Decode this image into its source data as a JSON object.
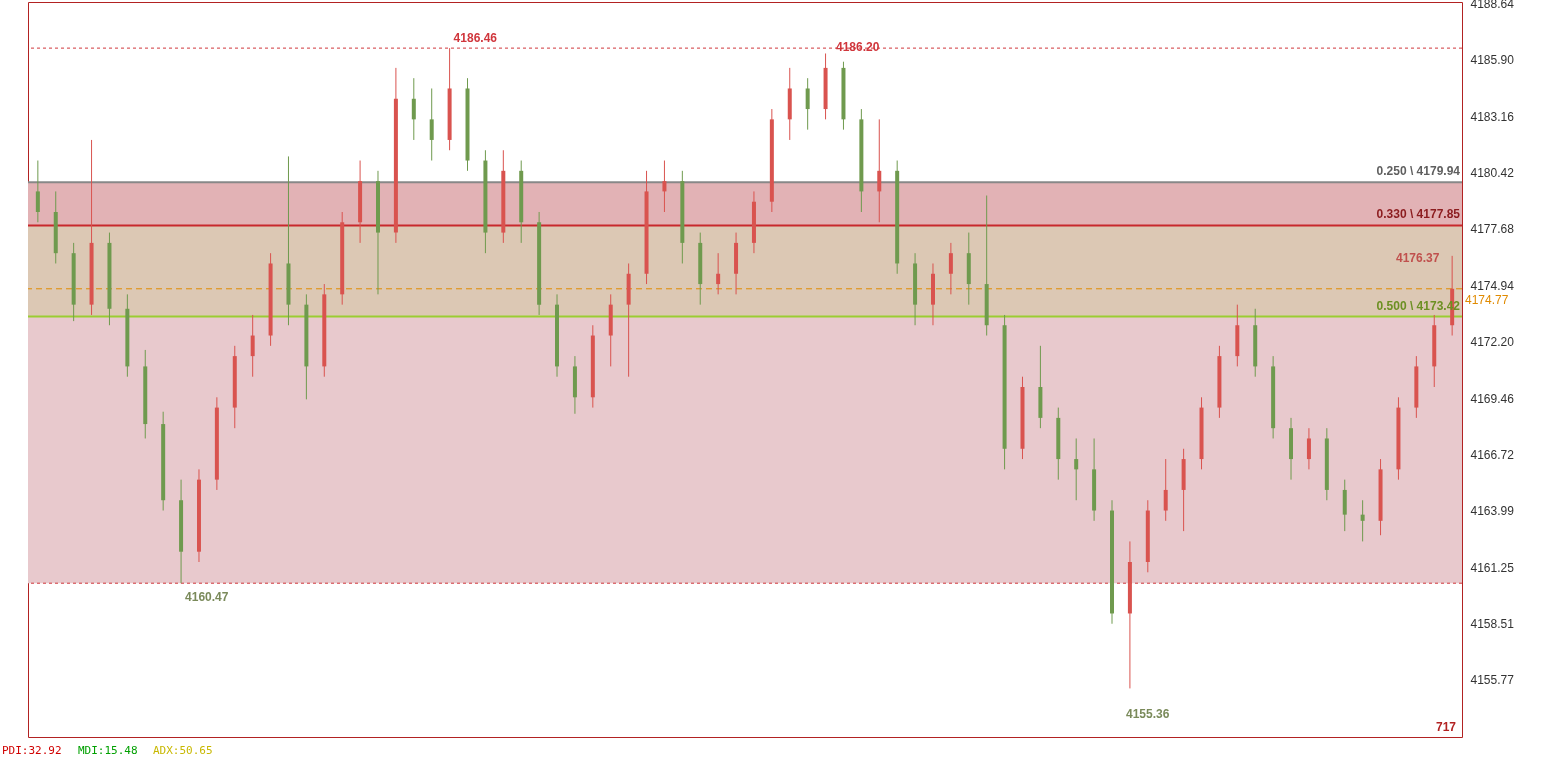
{
  "chart_data": {
    "type": "candlestick",
    "categories": [
      null,
      null,
      null,
      null,
      null,
      null,
      null,
      null,
      null,
      null,
      null,
      null,
      null,
      null,
      null,
      null,
      null,
      null,
      null,
      null,
      null,
      null,
      null,
      null,
      null,
      null,
      null,
      null,
      null,
      null,
      null,
      null,
      null,
      null,
      null,
      null,
      null,
      null,
      null,
      null,
      null,
      null,
      null,
      null,
      null,
      null,
      null,
      null,
      null,
      null,
      null,
      null,
      null,
      null,
      null,
      null,
      null,
      null,
      null,
      null,
      null,
      null,
      null,
      null,
      null,
      null,
      null,
      null,
      null,
      null,
      null,
      null,
      null,
      null,
      null,
      null,
      null,
      null,
      null,
      null
    ],
    "ohlc": [
      [
        4179.5,
        4181.0,
        4178.0,
        4178.5
      ],
      [
        4178.5,
        4179.5,
        4176.0,
        4176.5
      ],
      [
        4176.5,
        4177.0,
        4173.2,
        4174.0
      ],
      [
        4174.0,
        4182.0,
        4173.5,
        4177.0
      ],
      [
        4177.0,
        4177.5,
        4173.0,
        4173.8
      ],
      [
        4173.8,
        4174.5,
        4170.5,
        4171.0
      ],
      [
        4171.0,
        4171.8,
        4167.5,
        4168.2
      ],
      [
        4168.2,
        4168.8,
        4164.0,
        4164.5
      ],
      [
        4164.5,
        4165.5,
        4160.47,
        4162.0
      ],
      [
        4162.0,
        4166.0,
        4161.5,
        4165.5
      ],
      [
        4165.5,
        4169.5,
        4165.0,
        4169.0
      ],
      [
        4169.0,
        4172.0,
        4168.0,
        4171.5
      ],
      [
        4171.5,
        4173.5,
        4170.5,
        4172.5
      ],
      [
        4172.5,
        4176.5,
        4172.0,
        4176.0
      ],
      [
        4176.0,
        4181.2,
        4173.0,
        4174.0
      ],
      [
        4174.0,
        4174.5,
        4169.4,
        4171.0
      ],
      [
        4171.0,
        4175.0,
        4170.5,
        4174.5
      ],
      [
        4174.5,
        4178.5,
        4174.0,
        4178.0
      ],
      [
        4178.0,
        4181.0,
        4177.0,
        4180.0
      ],
      [
        4180.0,
        4180.5,
        4174.5,
        4177.5
      ],
      [
        4177.5,
        4185.5,
        4177.0,
        4184.0
      ],
      [
        4184.0,
        4185.0,
        4182.0,
        4183.0
      ],
      [
        4183.0,
        4184.5,
        4181.0,
        4182.0
      ],
      [
        4182.0,
        4186.46,
        4181.5,
        4184.5
      ],
      [
        4184.5,
        4185.0,
        4180.5,
        4181.0
      ],
      [
        4181.0,
        4181.5,
        4176.5,
        4177.5
      ],
      [
        4177.5,
        4181.5,
        4177.0,
        4180.5
      ],
      [
        4180.5,
        4181.0,
        4177.0,
        4178.0
      ],
      [
        4178.0,
        4178.5,
        4173.5,
        4174.0
      ],
      [
        4174.0,
        4174.5,
        4170.5,
        4171.0
      ],
      [
        4171.0,
        4171.5,
        4168.7,
        4169.5
      ],
      [
        4169.5,
        4173.0,
        4169.0,
        4172.5
      ],
      [
        4172.5,
        4174.5,
        4171.0,
        4174.0
      ],
      [
        4174.0,
        4176.0,
        4170.5,
        4175.5
      ],
      [
        4175.5,
        4180.5,
        4175.0,
        4179.5
      ],
      [
        4179.5,
        4181.0,
        4178.5,
        4180.0
      ],
      [
        4180.0,
        4180.5,
        4176.0,
        4177.0
      ],
      [
        4177.0,
        4177.5,
        4174.0,
        4175.0
      ],
      [
        4175.0,
        4176.5,
        4174.5,
        4175.5
      ],
      [
        4175.5,
        4177.5,
        4174.5,
        4177.0
      ],
      [
        4177.0,
        4179.5,
        4176.5,
        4179.0
      ],
      [
        4179.0,
        4183.5,
        4178.5,
        4183.0
      ],
      [
        4183.0,
        4185.5,
        4182.0,
        4184.5
      ],
      [
        4184.5,
        4185.0,
        4182.5,
        4183.5
      ],
      [
        4183.5,
        4186.2,
        4183.0,
        4185.5
      ],
      [
        4185.5,
        4185.8,
        4182.5,
        4183.0
      ],
      [
        4183.0,
        4183.5,
        4178.5,
        4179.5
      ],
      [
        4179.5,
        4183.0,
        4178.0,
        4180.5
      ],
      [
        4180.5,
        4181.0,
        4175.5,
        4176.0
      ],
      [
        4176.0,
        4176.5,
        4173.0,
        4174.0
      ],
      [
        4174.0,
        4176.0,
        4173.0,
        4175.5
      ],
      [
        4175.5,
        4177.0,
        4174.5,
        4176.5
      ],
      [
        4176.5,
        4177.5,
        4174.0,
        4175.0
      ],
      [
        4175.0,
        4179.3,
        4172.5,
        4173.0
      ],
      [
        4173.0,
        4173.5,
        4166.0,
        4167.0
      ],
      [
        4167.0,
        4170.5,
        4166.5,
        4170.0
      ],
      [
        4170.0,
        4172.0,
        4168.0,
        4168.5
      ],
      [
        4168.5,
        4169.0,
        4165.5,
        4166.5
      ],
      [
        4166.5,
        4167.5,
        4164.5,
        4166.0
      ],
      [
        4166.0,
        4167.5,
        4163.5,
        4164.0
      ],
      [
        4164.0,
        4164.5,
        4158.5,
        4159.0
      ],
      [
        4159.0,
        4162.5,
        4155.36,
        4161.5
      ],
      [
        4161.5,
        4164.5,
        4161.0,
        4164.0
      ],
      [
        4164.0,
        4166.5,
        4163.5,
        4165.0
      ],
      [
        4165.0,
        4167.0,
        4163.0,
        4166.5
      ],
      [
        4166.5,
        4169.5,
        4166.0,
        4169.0
      ],
      [
        4169.0,
        4172.0,
        4168.5,
        4171.5
      ],
      [
        4171.5,
        4174.0,
        4171.0,
        4173.0
      ],
      [
        4173.0,
        4173.8,
        4170.5,
        4171.0
      ],
      [
        4171.0,
        4171.5,
        4167.5,
        4168.0
      ],
      [
        4168.0,
        4168.5,
        4165.5,
        4166.5
      ],
      [
        4166.5,
        4168.0,
        4166.0,
        4167.5
      ],
      [
        4167.5,
        4168.0,
        4164.5,
        4165.0
      ],
      [
        4165.0,
        4165.5,
        4163.0,
        4163.8
      ],
      [
        4163.8,
        4164.5,
        4162.5,
        4163.5
      ],
      [
        4163.5,
        4166.5,
        4162.8,
        4166.0
      ],
      [
        4166.0,
        4169.5,
        4165.5,
        4169.0
      ],
      [
        4169.0,
        4171.5,
        4168.5,
        4171.0
      ],
      [
        4171.0,
        4173.5,
        4170.0,
        4173.0
      ],
      [
        4173.0,
        4176.37,
        4172.5,
        4174.77
      ]
    ],
    "colors": [
      "#6f9a4e",
      "#6f9a4e",
      "#6f9a4e",
      "#d9534f",
      "#6f9a4e",
      "#6f9a4e",
      "#6f9a4e",
      "#6f9a4e",
      "#6f9a4e",
      "#d9534f",
      "#d9534f",
      "#d9534f",
      "#d9534f",
      "#d9534f",
      "#6f9a4e",
      "#6f9a4e",
      "#d9534f",
      "#d9534f",
      "#d9534f",
      "#6f9a4e",
      "#d9534f",
      "#6f9a4e",
      "#6f9a4e",
      "#d9534f",
      "#6f9a4e",
      "#6f9a4e",
      "#d9534f",
      "#6f9a4e",
      "#6f9a4e",
      "#6f9a4e",
      "#6f9a4e",
      "#d9534f",
      "#d9534f",
      "#d9534f",
      "#d9534f",
      "#d9534f",
      "#6f9a4e",
      "#6f9a4e",
      "#d9534f",
      "#d9534f",
      "#d9534f",
      "#d9534f",
      "#d9534f",
      "#6f9a4e",
      "#d9534f",
      "#6f9a4e",
      "#6f9a4e",
      "#d9534f",
      "#6f9a4e",
      "#6f9a4e",
      "#d9534f",
      "#d9534f",
      "#6f9a4e",
      "#6f9a4e",
      "#6f9a4e",
      "#d9534f",
      "#6f9a4e",
      "#6f9a4e",
      "#6f9a4e",
      "#6f9a4e",
      "#6f9a4e",
      "#d9534f",
      "#d9534f",
      "#d9534f",
      "#d9534f",
      "#d9534f",
      "#d9534f",
      "#d9534f",
      "#6f9a4e",
      "#6f9a4e",
      "#6f9a4e",
      "#d9534f",
      "#6f9a4e",
      "#6f9a4e",
      "#6f9a4e",
      "#d9534f",
      "#d9534f",
      "#d9534f",
      "#d9534f",
      "#d9534f"
    ],
    "ylim": [
      4153.0,
      4188.7
    ],
    "yticks": [
      4155.77,
      4158.51,
      4161.25,
      4163.99,
      4166.72,
      4169.46,
      {
        "value": 4172.2,
        "label": "4172.20"
      },
      4174.94,
      4177.68,
      4180.42,
      4183.16,
      {
        "value": 4185.9,
        "label": "4185.90"
      },
      4188.64
    ],
    "tick_labels": "y",
    "bands": [
      {
        "axis": "y",
        "from": 4160.47,
        "to": 4173.42,
        "color": "#e8c9cd"
      },
      {
        "axis": "y",
        "from": 4173.42,
        "to": 4177.85,
        "color": "#dcc8b4"
      },
      {
        "axis": "y",
        "from": 4177.85,
        "to": 4179.94,
        "color": "#e2b2b5"
      }
    ],
    "ref_lines": [
      {
        "axis": "y",
        "value": 4179.94,
        "label": "0.250 \\ 4179.94",
        "color": "#888888",
        "line_style": "solid"
      },
      {
        "axis": "y",
        "value": 4177.85,
        "label": "0.330 \\ 4177.85",
        "color": "#c8282d",
        "line_style": "solid"
      },
      {
        "axis": "y",
        "value": 4173.42,
        "label": "0.500 \\ 4173.42",
        "color": "#9acd32",
        "line_style": "solid"
      },
      {
        "axis": "y",
        "value": 4174.77,
        "label": "4174.77",
        "color": "#e08a00",
        "line_style": "dashed"
      },
      {
        "axis": "y",
        "value": 4186.46,
        "color": "#d0363c",
        "line_style": "dotted"
      },
      {
        "axis": "y",
        "value": 4160.47,
        "color": "#d0363c",
        "line_style": "dotted"
      }
    ],
    "annotations": [
      {
        "text": "4186.46",
        "y": 4186.46
      },
      {
        "text": "4160.47",
        "y": 4160.47
      },
      "4186.20",
      "4155.36",
      "4176.37",
      "717",
      "PDI:32.92",
      "MDI:15.48",
      "ADX:50.65"
    ]
  }
}
